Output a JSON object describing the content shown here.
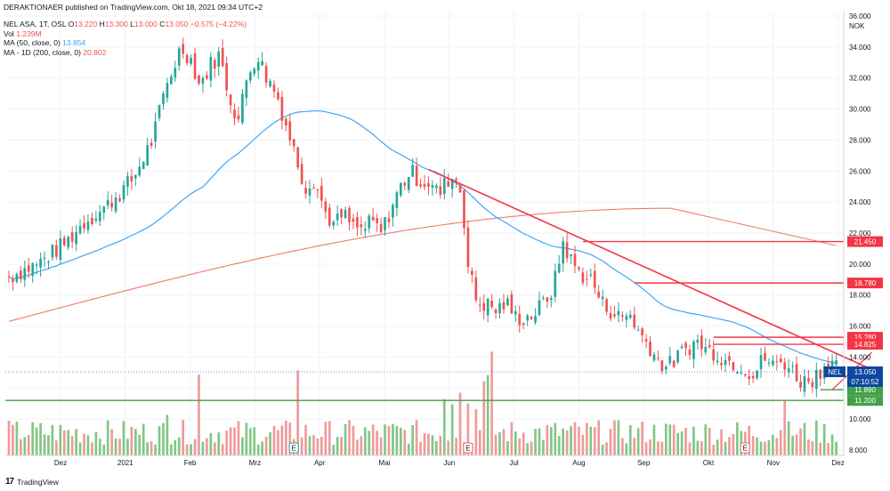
{
  "header": {
    "published": "DERAKTIONAER published on TradingView.com, Okt 18, 2021 09:34 UTC+2",
    "symbol": "NEL ASA, 1T, OSL",
    "ohlc": {
      "o_label": "O",
      "o": "13.220",
      "h_label": "H",
      "h": "13.300",
      "l_label": "L",
      "l": "13.000",
      "c_label": "C",
      "c": "13.050",
      "chg": "−0.575 (−4.22%)"
    },
    "vol_label": "Vol",
    "vol": "1.239M",
    "ma50_label": "MA (50, close, 0)",
    "ma50": "13.854",
    "ma200_label": "MA - 1D (200, close, 0)",
    "ma200": "20.802"
  },
  "footer": {
    "brand": "TradingView"
  },
  "colors": {
    "up": "#26a69a",
    "down": "#ef5350",
    "ma50": "#42a5f5",
    "ma200": "#ef7a6a",
    "trend": "#f23645",
    "support": "#43a047",
    "vol_up": "#81c784",
    "vol_down": "#ef9a9a",
    "current": "#0d47a1",
    "earnings": "#ef6c73",
    "earnings_alt": "#26a69a",
    "event_e": "#ce93d8"
  },
  "chart_data": {
    "type": "candlestick",
    "currency": "NOK",
    "y_ticks": [
      "36.000",
      "34.000",
      "32.000",
      "30.000",
      "28.000",
      "26.000",
      "24.000",
      "22.000",
      "20.000",
      "18.000",
      "16.000",
      "14.000",
      "12.000",
      "10.000",
      "8.000"
    ],
    "y_range": [
      8,
      36
    ],
    "x_ticks": [
      "Dez",
      "2021",
      "Feb",
      "Mrz",
      "Apr",
      "Mai",
      "Jun",
      "Jul",
      "Aug",
      "Sep",
      "Okt",
      "Nov",
      "Dez"
    ],
    "price_path": [
      [
        0,
        19.2
      ],
      [
        6,
        20.0
      ],
      [
        12,
        21.4
      ],
      [
        16,
        22.8
      ],
      [
        20,
        23.6
      ],
      [
        26,
        25.5
      ],
      [
        30,
        28.0
      ],
      [
        33,
        31.5
      ],
      [
        36,
        34.0
      ],
      [
        38,
        33.3
      ],
      [
        40,
        31.5
      ],
      [
        42,
        32.8
      ],
      [
        44,
        33.5
      ],
      [
        46,
        31.0
      ],
      [
        48,
        29.2
      ],
      [
        50,
        32.3
      ],
      [
        52,
        33.5
      ],
      [
        54,
        32.0
      ],
      [
        56,
        31.0
      ],
      [
        58,
        29.0
      ],
      [
        60,
        27.0
      ],
      [
        62,
        25.0
      ],
      [
        64,
        25.5
      ],
      [
        66,
        23.5
      ],
      [
        68,
        22.5
      ],
      [
        70,
        23.2
      ],
      [
        72,
        22.4
      ],
      [
        74,
        22.2
      ],
      [
        76,
        22.7
      ],
      [
        78,
        22.0
      ],
      [
        80,
        23.6
      ],
      [
        82,
        25.0
      ],
      [
        84,
        26.0
      ],
      [
        86,
        25.4
      ],
      [
        88,
        25.2
      ],
      [
        90,
        24.5
      ],
      [
        92,
        25.5
      ],
      [
        94,
        25.5
      ],
      [
        95,
        24.0
      ],
      [
        96,
        20.0
      ],
      [
        98,
        17.5
      ],
      [
        100,
        17.4
      ],
      [
        102,
        17.0
      ],
      [
        104,
        17.5
      ],
      [
        106,
        16.6
      ],
      [
        108,
        16.5
      ],
      [
        110,
        16.8
      ],
      [
        112,
        17.5
      ],
      [
        114,
        18.5
      ],
      [
        116,
        21.4
      ],
      [
        118,
        20.0
      ],
      [
        120,
        19.3
      ],
      [
        122,
        19.0
      ],
      [
        124,
        17.5
      ],
      [
        126,
        17.0
      ],
      [
        128,
        16.5
      ],
      [
        130,
        16.8
      ],
      [
        132,
        15.5
      ],
      [
        134,
        14.8
      ],
      [
        136,
        13.7
      ],
      [
        138,
        13.4
      ],
      [
        140,
        14.0
      ],
      [
        142,
        14.6
      ],
      [
        144,
        15.0
      ],
      [
        146,
        14.5
      ],
      [
        148,
        14.3
      ],
      [
        150,
        13.8
      ],
      [
        152,
        13.6
      ],
      [
        154,
        13.3
      ],
      [
        156,
        12.8
      ],
      [
        158,
        14.0
      ],
      [
        160,
        13.4
      ],
      [
        162,
        13.8
      ],
      [
        164,
        13.1
      ],
      [
        166,
        12.4
      ],
      [
        168,
        12.6
      ],
      [
        170,
        13.2
      ],
      [
        172,
        14.0
      ],
      [
        174,
        13.1
      ]
    ],
    "volume_note": "volume histogram at bottom of pane",
    "ma50_label": "MA (50, close, 0)",
    "ma200_label": "MA - 1D (200, close, 0)",
    "horizontal_levels": [
      {
        "value": 21.45,
        "label": "21.450",
        "color": "trend"
      },
      {
        "value": 18.78,
        "label": "18.780",
        "color": "trend"
      },
      {
        "value": 15.28,
        "label": "15.280",
        "color": "trend"
      },
      {
        "value": 14.825,
        "label": "14.825",
        "color": "trend"
      },
      {
        "value": 11.89,
        "label": "11.890",
        "color": "support"
      },
      {
        "value": 11.2,
        "label": "11.200",
        "color": "support"
      }
    ],
    "current": {
      "symbol": "NEL",
      "price": "13.050",
      "countdown": "07:10:52"
    }
  }
}
